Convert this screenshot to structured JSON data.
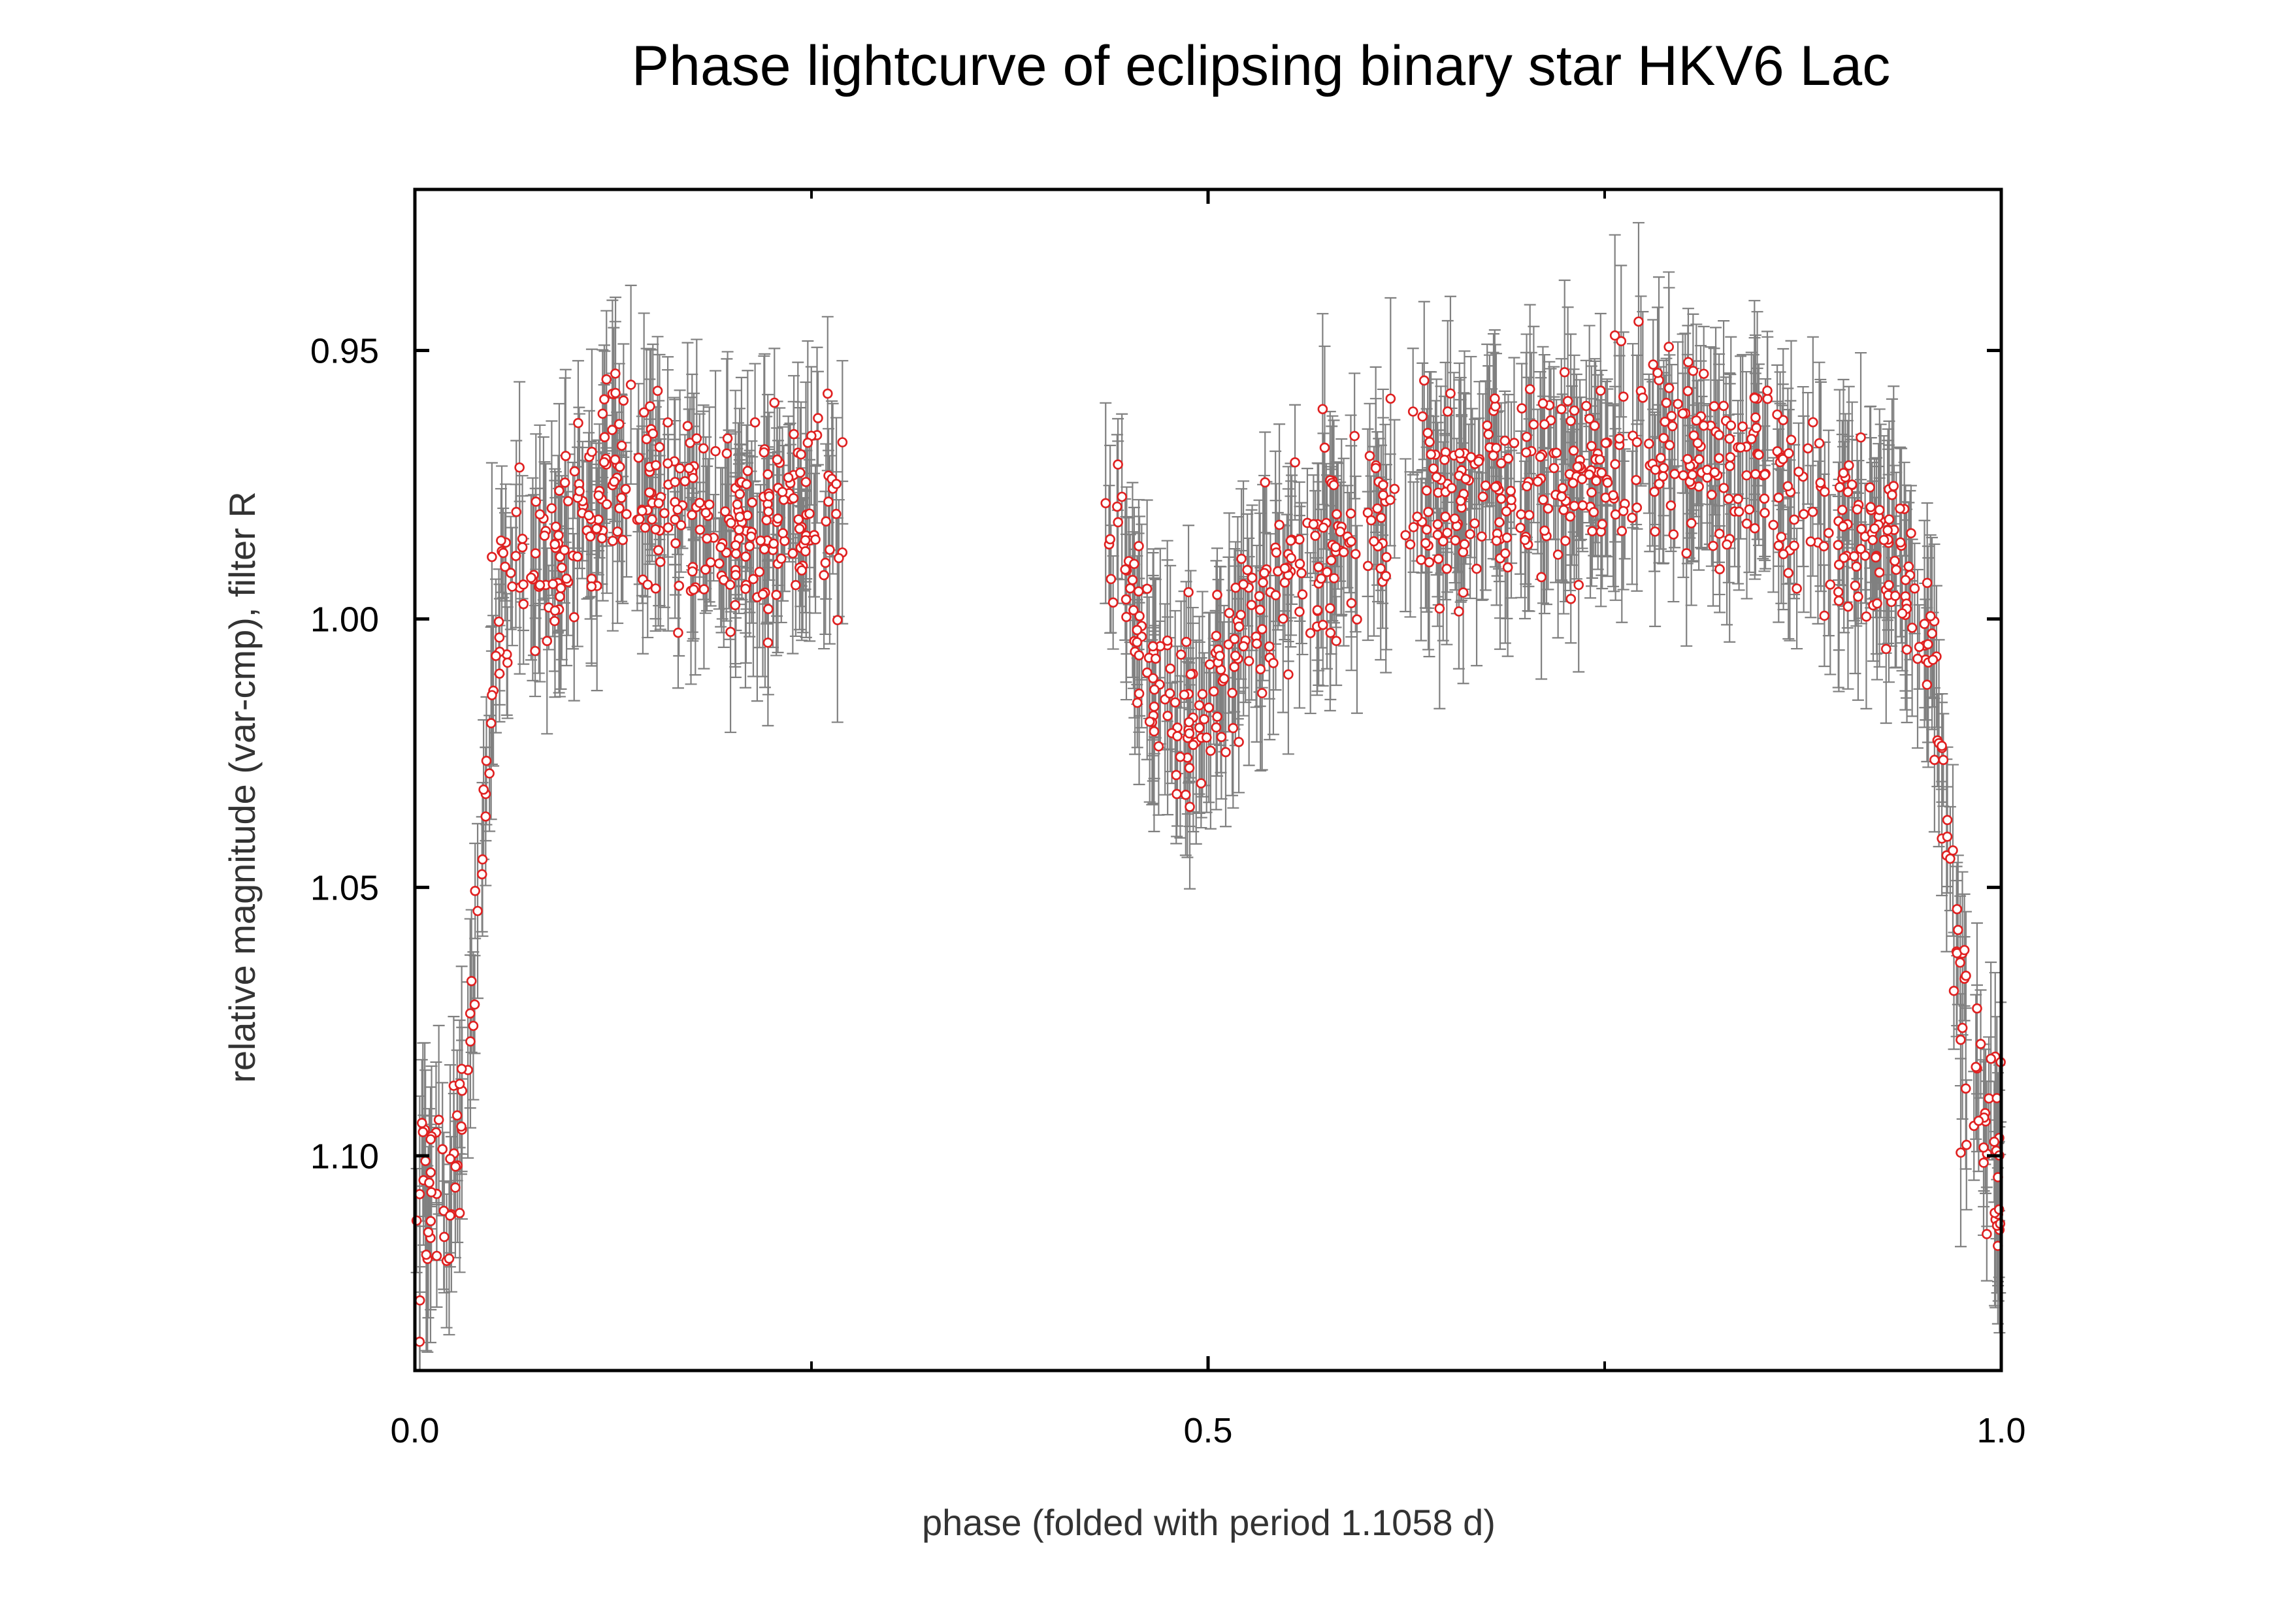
{
  "chart_data": {
    "type": "scatter",
    "title": "Phase lightcurve of eclipsing binary star HKV6 Lac",
    "xlabel": "phase  (folded with period 1.1058 d)",
    "ylabel": "relative magnitude (var-cmp), filter R",
    "xlim": [
      0.0,
      1.0
    ],
    "ylim": [
      1.14,
      0.92
    ],
    "y_inverted": true,
    "x_ticks": [
      0.0,
      0.5,
      1.0
    ],
    "x_tick_labels": [
      "0.0",
      "0.5",
      "1.0"
    ],
    "x_minor_ticks": [
      0.25,
      0.75
    ],
    "y_ticks": [
      0.95,
      1.0,
      1.05,
      1.1
    ],
    "y_tick_labels": [
      "0.95",
      "1.00",
      "1.05",
      "1.10"
    ],
    "grid": false,
    "legend": "none",
    "marker_color": "#e02020",
    "errorbar_color": "#808080",
    "series": [
      {
        "marker": "open-circle",
        "trend": {
          "x": [
            0.0,
            0.015,
            0.025,
            0.035,
            0.042,
            0.05,
            0.06,
            0.08,
            0.1,
            0.12,
            0.15,
            0.2,
            0.26,
            0.27,
            0.435,
            0.445,
            0.46,
            0.48,
            0.5,
            0.52,
            0.55,
            0.6,
            0.7,
            0.75,
            0.8,
            0.85,
            0.9,
            0.94,
            0.955,
            0.965,
            0.975,
            0.99,
            1.0
          ],
          "y": [
            1.112,
            1.107,
            1.1,
            1.075,
            1.04,
            1.005,
            0.995,
            0.992,
            0.985,
            0.97,
            0.977,
            0.985,
            0.98,
            0.979,
            0.982,
            0.988,
            1.005,
            1.02,
            1.018,
            1.005,
            0.99,
            0.982,
            0.973,
            0.97,
            0.968,
            0.975,
            0.985,
            0.99,
            1.005,
            1.04,
            1.075,
            1.1,
            1.105
          ]
        },
        "point_count": 1100,
        "scatter_mag": 0.009,
        "error_mag": 0.013,
        "gaps": [
          [
            0.27,
            0.435
          ]
        ]
      }
    ]
  }
}
